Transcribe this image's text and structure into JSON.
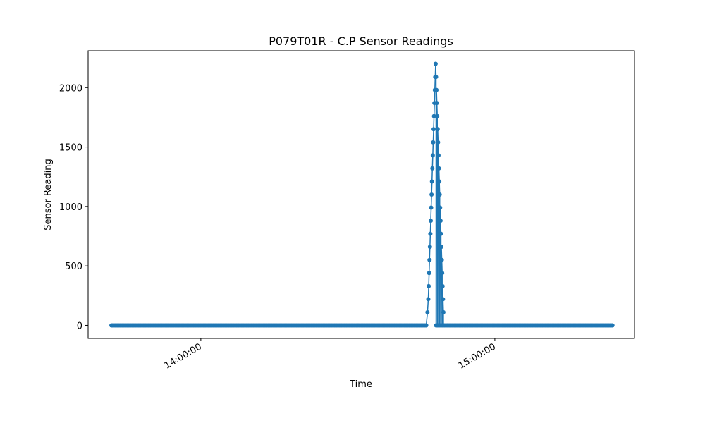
{
  "chart_data": {
    "type": "line",
    "title": "P079T01R - C.P Sensor Readings",
    "xlabel": "Time",
    "ylabel": "Sensor Reading",
    "x_start": "13:41:45",
    "x_end": "15:24:00",
    "xlim": [
      "13:37:00",
      "15:28:30"
    ],
    "ylim": [
      -110,
      2310
    ],
    "x_ticks": [
      "14:00:00",
      "15:00:00"
    ],
    "y_ticks": [
      0,
      500,
      1000,
      1500,
      2000
    ],
    "grid": false,
    "legend": "none",
    "series": [
      {
        "color": "#1f77b4",
        "marker": "circle",
        "baseline_points": [
          {
            "from": "13:41:45",
            "to": "14:46:00",
            "value": 0
          },
          {
            "from": "14:48:00",
            "to": "15:24:00",
            "value": 0
          }
        ],
        "pulse_points": [
          {
            "x": "14:46:15",
            "y": 110
          },
          {
            "x": "14:46:25",
            "y": 220
          },
          {
            "x": "14:46:30",
            "y": 330
          },
          {
            "x": "14:46:35",
            "y": 440
          },
          {
            "x": "14:46:40",
            "y": 550
          },
          {
            "x": "14:46:45",
            "y": 660
          },
          {
            "x": "14:46:50",
            "y": 770
          },
          {
            "x": "14:46:55",
            "y": 880
          },
          {
            "x": "14:47:00",
            "y": 990
          },
          {
            "x": "14:47:05",
            "y": 1100
          },
          {
            "x": "14:47:10",
            "y": 1210
          },
          {
            "x": "14:47:15",
            "y": 1320
          },
          {
            "x": "14:47:20",
            "y": 1430
          },
          {
            "x": "14:47:25",
            "y": 1540
          },
          {
            "x": "14:47:30",
            "y": 1650
          },
          {
            "x": "14:47:35",
            "y": 1760
          },
          {
            "x": "14:47:40",
            "y": 1870
          },
          {
            "x": "14:47:45",
            "y": 1980
          },
          {
            "x": "14:47:50",
            "y": 2090
          },
          {
            "x": "14:47:55",
            "y": 2200
          },
          {
            "x": "14:48:00",
            "y": 2090
          },
          {
            "x": "14:48:05",
            "y": 1980
          },
          {
            "x": "14:48:10",
            "y": 1870
          },
          {
            "x": "14:48:15",
            "y": 1760
          },
          {
            "x": "14:48:20",
            "y": 1650
          },
          {
            "x": "14:48:25",
            "y": 1540
          },
          {
            "x": "14:48:30",
            "y": 1430
          },
          {
            "x": "14:48:35",
            "y": 1320
          },
          {
            "x": "14:48:40",
            "y": 1210
          },
          {
            "x": "14:48:45",
            "y": 1100
          },
          {
            "x": "14:48:50",
            "y": 990
          },
          {
            "x": "14:48:55",
            "y": 880
          },
          {
            "x": "14:49:00",
            "y": 770
          },
          {
            "x": "14:49:05",
            "y": 660
          },
          {
            "x": "14:49:10",
            "y": 550
          },
          {
            "x": "14:49:15",
            "y": 440
          },
          {
            "x": "14:49:20",
            "y": 330
          },
          {
            "x": "14:49:25",
            "y": 220
          },
          {
            "x": "14:49:30",
            "y": 110
          }
        ]
      }
    ]
  }
}
